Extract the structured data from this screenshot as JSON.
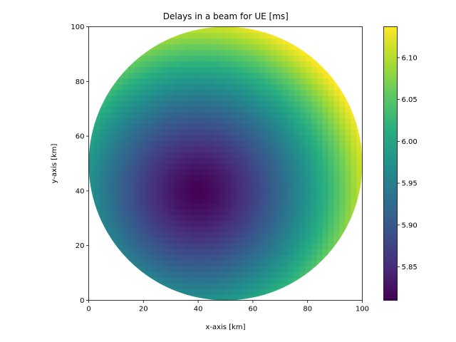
{
  "chart_data": {
    "type": "heatmap",
    "title": "Delays in a beam for UE [ms]",
    "xlabel": "x-axis [km]",
    "ylabel": "y-axis [km]",
    "xlim": [
      0,
      100
    ],
    "ylim": [
      0,
      100
    ],
    "xticks": [
      "0",
      "20",
      "40",
      "60",
      "80",
      "100"
    ],
    "yticks": [
      "0",
      "20",
      "40",
      "60",
      "80",
      "100"
    ],
    "colormap": "viridis",
    "colorbar": {
      "min": 5.81,
      "max": 6.137,
      "ticks": [
        "5.85",
        "5.90",
        "5.95",
        "6.00",
        "6.05",
        "6.10"
      ]
    },
    "beam": {
      "center_km": [
        50,
        50
      ],
      "radius_km": 50
    },
    "delay_field": {
      "minimum_ms": 5.81,
      "minimum_location_km": [
        40,
        40
      ],
      "maximum_ms": 6.137,
      "maximum_location_km": [
        85,
        85
      ],
      "near_center_ms": 5.83
    },
    "grid": false,
    "legend": "none"
  },
  "colors": {
    "viridis_stops": [
      "#440154",
      "#472d7b",
      "#3b528b",
      "#2c728e",
      "#21918c",
      "#28ae80",
      "#5ec962",
      "#addc30",
      "#fde725"
    ]
  }
}
